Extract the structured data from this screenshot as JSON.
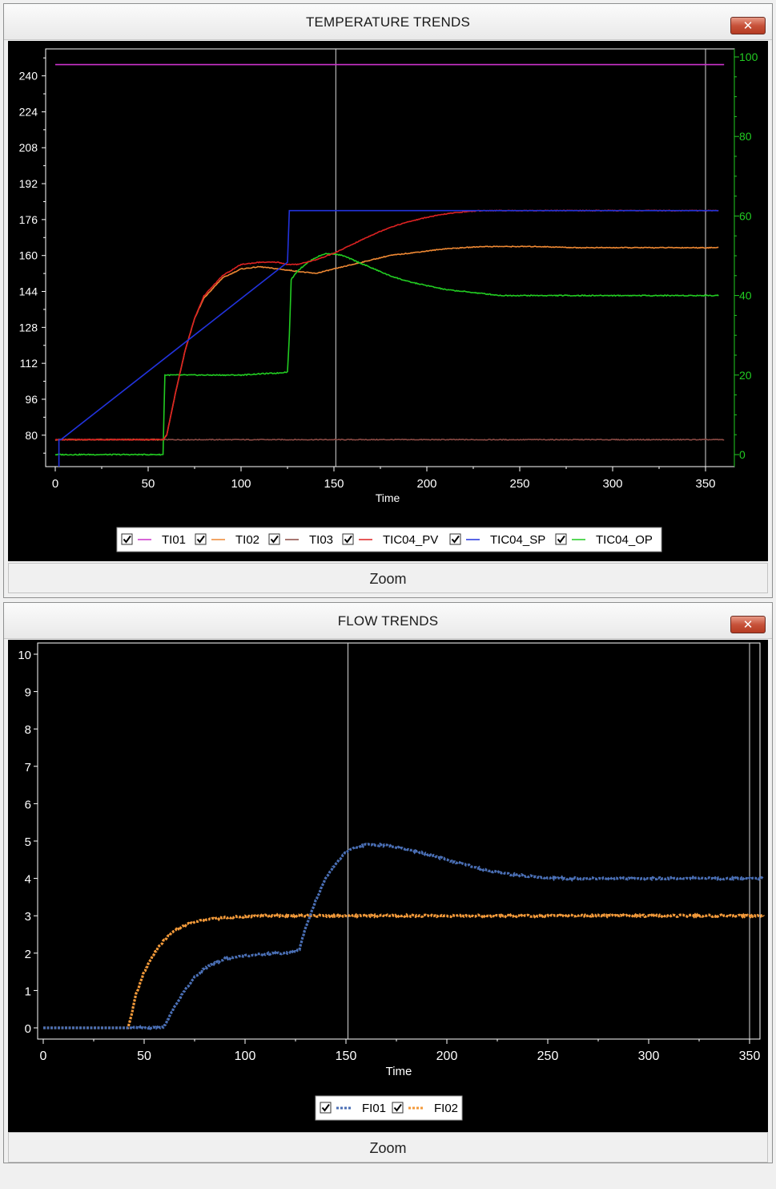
{
  "temperature_panel": {
    "title": "TEMPERATURE TRENDS",
    "close_label": "✕",
    "zoom_label": "Zoom"
  },
  "flow_panel": {
    "title": "FLOW TRENDS",
    "close_label": "✕",
    "zoom_label": "Zoom"
  },
  "colors": {
    "TI01": "#cc33cc",
    "TI02": "#ee8833",
    "TI03": "#8b4a44",
    "TIC04_PV": "#dd2222",
    "TIC04_SP": "#2233dd",
    "TIC04_OP": "#22cc22",
    "FI01": "#4a6fb5",
    "FI02": "#f39a3a",
    "cursor": "#d8d8d8"
  },
  "chart_data": [
    {
      "type": "line",
      "title": "TEMPERATURE TRENDS",
      "xlabel": "Time",
      "ylabel": "",
      "xlim": [
        0,
        360
      ],
      "xticks": [
        0,
        50,
        100,
        150,
        200,
        250,
        300,
        350
      ],
      "ylim": [
        66,
        252
      ],
      "yticks": [
        80,
        96,
        112,
        128,
        144,
        160,
        176,
        192,
        208,
        224,
        240
      ],
      "y2lim": [
        0,
        100
      ],
      "y2ticks": [
        0,
        20,
        40,
        60,
        80,
        100
      ],
      "grid": false,
      "legend_position": "bottom",
      "cursors_x": [
        151,
        350
      ],
      "series": [
        {
          "name": "TI01",
          "axis": "left",
          "x": [
            0,
            360
          ],
          "y": [
            245,
            245
          ]
        },
        {
          "name": "TI02",
          "axis": "left",
          "x": [
            0,
            58,
            60,
            65,
            70,
            75,
            80,
            90,
            100,
            110,
            120,
            130,
            140,
            150,
            160,
            170,
            180,
            190,
            200,
            210,
            220,
            230,
            240,
            260,
            280,
            300,
            320,
            340,
            357
          ],
          "y": [
            78,
            78,
            80,
            100,
            118,
            132,
            141,
            150,
            154,
            155,
            154,
            153,
            152,
            154,
            156,
            158,
            160,
            161,
            162,
            163,
            163.5,
            164,
            164,
            164,
            163.5,
            163.5,
            163.5,
            163.5,
            163.5
          ]
        },
        {
          "name": "TI03",
          "axis": "left",
          "x": [
            0,
            360
          ],
          "y": [
            78,
            78
          ]
        },
        {
          "name": "TIC04_PV",
          "axis": "left",
          "x": [
            0,
            58,
            60,
            65,
            70,
            75,
            80,
            90,
            100,
            110,
            120,
            125,
            130,
            140,
            150,
            160,
            170,
            180,
            190,
            200,
            210,
            220,
            230,
            240,
            260,
            280,
            300,
            320,
            340,
            357
          ],
          "y": [
            78,
            78,
            80,
            100,
            118,
            132,
            142,
            151,
            156,
            157,
            157,
            156,
            156,
            158,
            161,
            165,
            169,
            172.5,
            175,
            177,
            178.5,
            179.5,
            180,
            180,
            180,
            180,
            180,
            180,
            180,
            180
          ]
        },
        {
          "name": "TIC04_SP",
          "axis": "left",
          "x": [
            2,
            2,
            3,
            125,
            126,
            357
          ],
          "y": [
            66,
            78,
            78,
            157,
            180,
            180
          ]
        },
        {
          "name": "TIC04_OP",
          "axis": "right",
          "x": [
            0,
            58,
            59,
            62,
            100,
            110,
            120,
            125,
            126,
            127,
            130,
            135,
            140,
            145,
            150,
            155,
            160,
            170,
            180,
            190,
            200,
            210,
            220,
            230,
            240,
            250,
            260,
            280,
            300,
            320,
            340,
            357
          ],
          "y": [
            0,
            0,
            20,
            20,
            20,
            20.3,
            20.5,
            20.8,
            30,
            44,
            46,
            48,
            49.5,
            50.5,
            50.5,
            50,
            49,
            47,
            45,
            43.5,
            42.5,
            41.5,
            41,
            40.5,
            40,
            40,
            40,
            40,
            40,
            40,
            40,
            40
          ]
        }
      ]
    },
    {
      "type": "scatter",
      "title": "FLOW TRENDS",
      "xlabel": "Time",
      "ylabel": "",
      "xlim": [
        0,
        360
      ],
      "xticks": [
        0,
        50,
        100,
        150,
        200,
        250,
        300,
        350
      ],
      "ylim": [
        -0.3,
        10.3
      ],
      "yticks": [
        0,
        1,
        2,
        3,
        4,
        5,
        6,
        7,
        8,
        9,
        10
      ],
      "grid": false,
      "legend_position": "bottom",
      "cursors_x": [
        151,
        350
      ],
      "series": [
        {
          "name": "FI01",
          "x": [
            0,
            58,
            60,
            65,
            70,
            75,
            80,
            90,
            100,
            110,
            120,
            125,
            127,
            130,
            135,
            140,
            145,
            150,
            155,
            160,
            165,
            170,
            180,
            190,
            200,
            210,
            220,
            230,
            240,
            250,
            260,
            270,
            280,
            290,
            300,
            310,
            320,
            330,
            340,
            357
          ],
          "y": [
            0,
            0,
            0.05,
            0.55,
            1.0,
            1.35,
            1.6,
            1.85,
            1.93,
            1.98,
            2.0,
            2.03,
            2.1,
            2.7,
            3.4,
            4.0,
            4.4,
            4.7,
            4.83,
            4.9,
            4.9,
            4.88,
            4.78,
            4.65,
            4.5,
            4.35,
            4.22,
            4.12,
            4.06,
            4.02,
            4.0,
            4.0,
            4.0,
            4.0,
            4.0,
            4.0,
            4.0,
            4.0,
            4.0,
            4.0
          ]
        },
        {
          "name": "FI02",
          "x": [
            0,
            42,
            44,
            46,
            50,
            55,
            60,
            65,
            70,
            80,
            90,
            100,
            110,
            120,
            357
          ],
          "y": [
            0,
            0,
            0.4,
            0.9,
            1.5,
            2.0,
            2.35,
            2.6,
            2.75,
            2.9,
            2.95,
            2.98,
            3.0,
            3.0,
            3.0
          ]
        }
      ]
    }
  ]
}
